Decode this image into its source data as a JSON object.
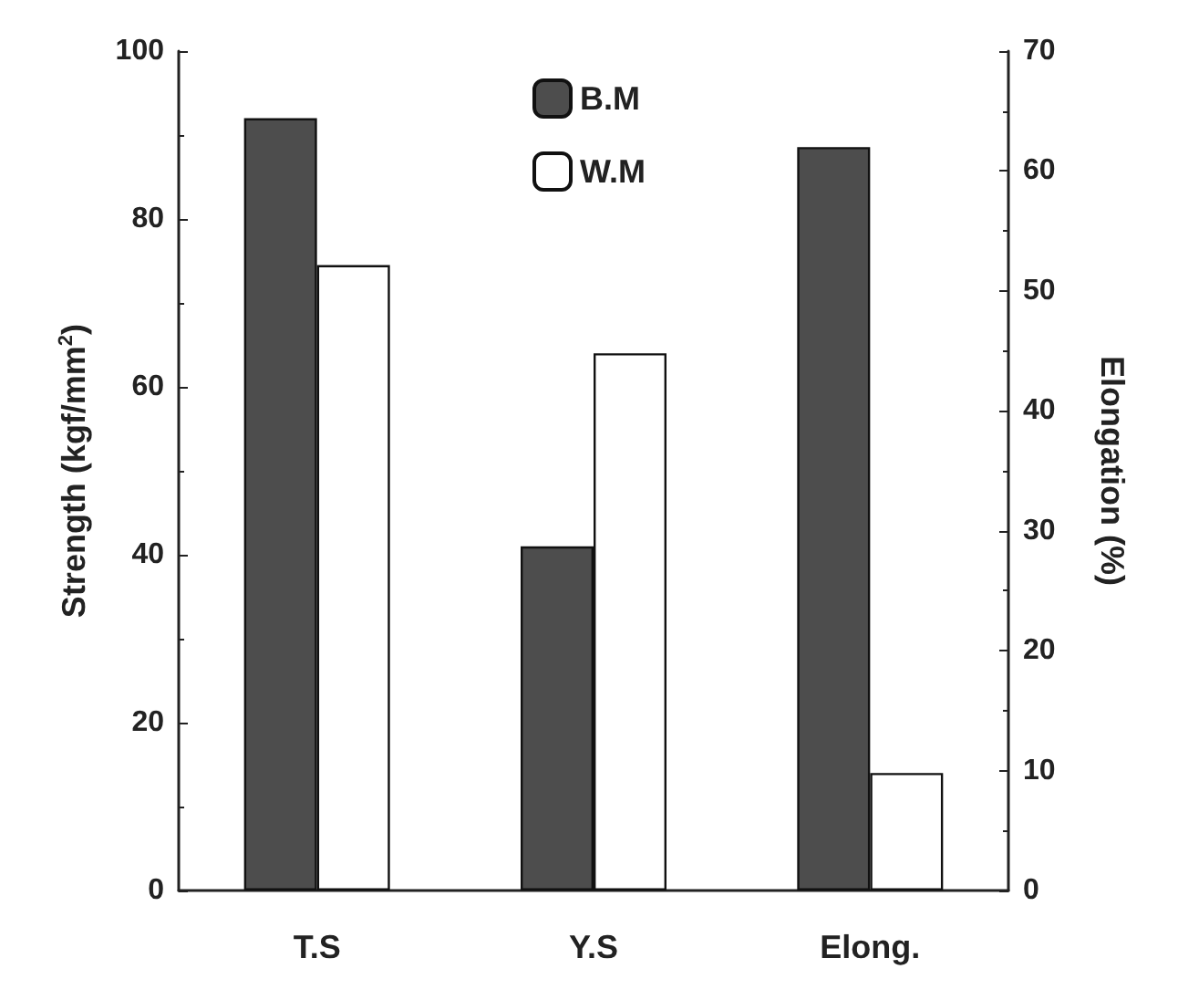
{
  "chart_data": {
    "type": "bar",
    "categories": [
      "T.S",
      "Y.S",
      "Elong."
    ],
    "ylabel": "Strength (kgf/mm$^{2}$)",
    "y2label": "Elongation (%)",
    "ylim": [
      0,
      100
    ],
    "yticks": [
      0,
      20,
      40,
      60,
      80,
      100
    ],
    "y2lim": [
      0,
      70
    ],
    "y2ticks": [
      0,
      10,
      20,
      30,
      40,
      50,
      60,
      70
    ],
    "series": [
      {
        "name": "B.M",
        "color": "#4d4d4d",
        "values": [
          92,
          41,
          null
        ]
      },
      {
        "name": "W.M",
        "color": "#ffffff",
        "values": [
          74.5,
          64,
          null
        ]
      },
      {
        "color": "#4d4d4d",
        "axis": "y2",
        "values": [
          null,
          null,
          62
        ]
      },
      {
        "color": "#ffffff",
        "axis": "y2",
        "values": [
          null,
          null,
          9.8
        ]
      }
    ],
    "legend": "top",
    "grid": false
  }
}
